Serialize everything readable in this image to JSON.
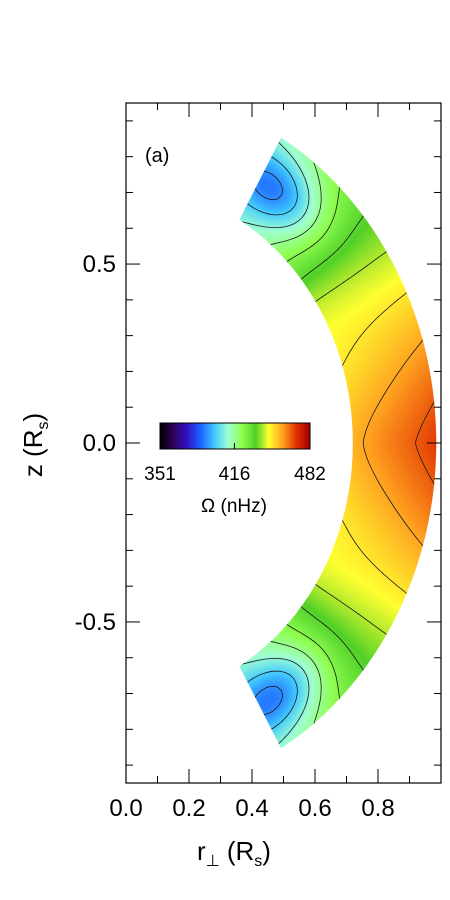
{
  "chart_data": {
    "type": "heatmap",
    "panel_label": "(a)",
    "xlabel": {
      "main": "r",
      "sub": "⊥",
      "units_open": " (R",
      "units_sub": "s",
      "units_close": ")"
    },
    "ylabel": {
      "main": "z (R",
      "sub": "s",
      "close": ")"
    },
    "xlim": [
      0.0,
      1.0
    ],
    "ylim": [
      -0.95,
      0.95
    ],
    "x_ticks": [
      0.0,
      0.2,
      0.4,
      0.6,
      0.8
    ],
    "x_tick_labels": [
      "0.0",
      "0.2",
      "0.4",
      "0.6",
      "0.8"
    ],
    "y_ticks": [
      -0.5,
      0.0,
      0.5
    ],
    "y_tick_labels": [
      "-0.5",
      "0.0",
      "0.5"
    ],
    "domain": {
      "r_inner": 0.72,
      "r_outer": 0.985,
      "latitude_max_deg": 60
    },
    "colorbar": {
      "min": 351,
      "max": 482,
      "tick_values": [
        351,
        416,
        482
      ],
      "tick_labels": [
        "351",
        "416",
        "482"
      ],
      "title": "Ω (nHz)",
      "colormap": [
        "#000000",
        "#30005a",
        "#3010c8",
        "#1e64ff",
        "#40c8ff",
        "#a0ffd0",
        "#90ff50",
        "#50d028",
        "#ffff30",
        "#ffa020",
        "#e03000",
        "#a00000"
      ]
    }
  }
}
